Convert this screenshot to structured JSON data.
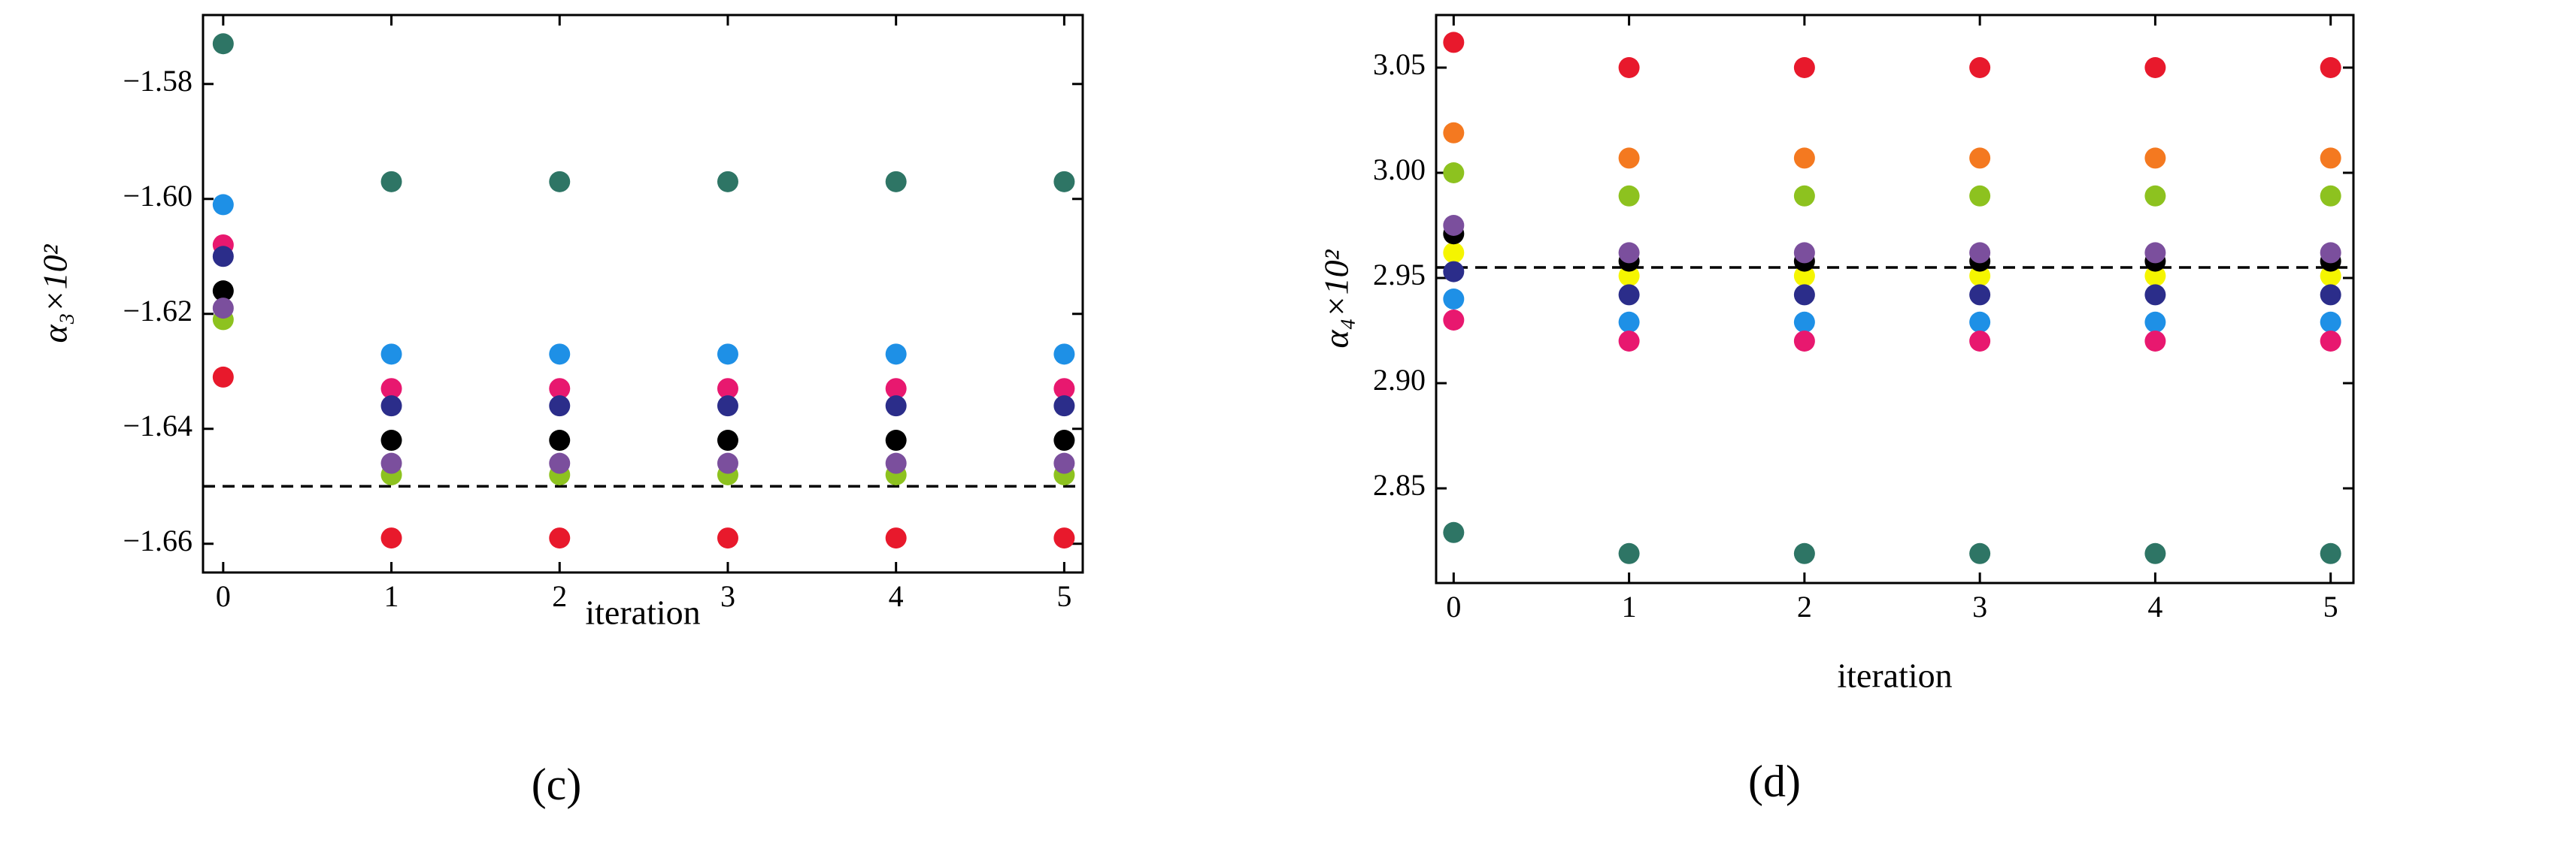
{
  "chart_data": [
    {
      "type": "scatter",
      "caption": "(c)",
      "xlabel": "iteration",
      "ylabel": "α₃×10²",
      "x": [
        0,
        1,
        2,
        3,
        4,
        5
      ],
      "xlim": [
        -0.12,
        5.11
      ],
      "xticks": [
        0,
        1,
        2,
        3,
        4,
        5
      ],
      "ylim": [
        -1.665,
        -1.568
      ],
      "yticks": [
        {
          "value": -1.58,
          "label": "−1.58"
        },
        {
          "value": -1.6,
          "label": "−1.60"
        },
        {
          "value": -1.62,
          "label": "−1.62"
        },
        {
          "value": -1.64,
          "label": "−1.64"
        },
        {
          "value": -1.66,
          "label": "−1.66"
        }
      ],
      "hline": -1.65,
      "series": [
        {
          "color": "#2e7565",
          "values": [
            -1.573,
            -1.597,
            -1.597,
            -1.597,
            -1.597,
            -1.597
          ]
        },
        {
          "color": "#1e90e6",
          "values": [
            -1.601,
            -1.627,
            -1.627,
            -1.627,
            -1.627,
            -1.627
          ]
        },
        {
          "color": "#e8186f",
          "values": [
            -1.608,
            -1.633,
            -1.633,
            -1.633,
            -1.633,
            -1.633
          ]
        },
        {
          "color": "#2b2d8a",
          "values": [
            -1.61,
            -1.636,
            -1.636,
            -1.636,
            -1.636,
            -1.636
          ]
        },
        {
          "color": "#000000",
          "values": [
            -1.616,
            -1.642,
            -1.642,
            -1.642,
            -1.642,
            -1.642
          ]
        },
        {
          "color": "#8dc21f",
          "values": [
            -1.621,
            -1.648,
            -1.648,
            -1.648,
            -1.648,
            -1.648
          ]
        },
        {
          "color": "#7b4f9d",
          "values": [
            -1.619,
            -1.646,
            -1.646,
            -1.646,
            -1.646,
            -1.646
          ]
        },
        {
          "color": "#e8192c",
          "values": [
            -1.631,
            -1.659,
            -1.659,
            -1.659,
            -1.659,
            -1.659
          ]
        }
      ]
    },
    {
      "type": "scatter",
      "caption": "(d)",
      "xlabel": "iteration",
      "ylabel": "α₄×10²",
      "x": [
        0,
        1,
        2,
        3,
        4,
        5
      ],
      "xlim": [
        -0.1,
        5.13
      ],
      "xticks": [
        0,
        1,
        2,
        3,
        4,
        5
      ],
      "ylim": [
        2.805,
        3.075
      ],
      "yticks": [
        2.85,
        {
          "value": 2.9,
          "label": "2.90"
        },
        2.95,
        {
          "value": 3,
          "label": "3.00"
        },
        3.05
      ],
      "hline": 2.955,
      "series": [
        {
          "color": "#e8192c",
          "values": [
            3.062,
            3.05,
            3.05,
            3.05,
            3.05,
            3.05
          ]
        },
        {
          "color": "#f47920",
          "values": [
            3.019,
            3.007,
            3.007,
            3.007,
            3.007,
            3.007
          ]
        },
        {
          "color": "#8dc21f",
          "values": [
            3.0,
            2.989,
            2.989,
            2.989,
            2.989,
            2.989
          ]
        },
        {
          "color": "#f5f500",
          "values": [
            2.962,
            2.951,
            2.951,
            2.951,
            2.951,
            2.951
          ]
        },
        {
          "color": "#000000",
          "values": [
            2.971,
            2.958,
            2.958,
            2.958,
            2.958,
            2.958
          ]
        },
        {
          "color": "#7b4f9d",
          "values": [
            2.975,
            2.962,
            2.962,
            2.962,
            2.962,
            2.962
          ]
        },
        {
          "color": "#2b2d8a",
          "values": [
            2.953,
            2.942,
            2.942,
            2.942,
            2.942,
            2.942
          ]
        },
        {
          "color": "#1e90e6",
          "values": [
            2.94,
            2.929,
            2.929,
            2.929,
            2.929,
            2.929
          ]
        },
        {
          "color": "#e8186f",
          "values": [
            2.93,
            2.92,
            2.92,
            2.92,
            2.92,
            2.92
          ]
        },
        {
          "color": "#2e7565",
          "values": [
            2.829,
            2.819,
            2.819,
            2.819,
            2.819,
            2.819
          ]
        }
      ]
    }
  ]
}
